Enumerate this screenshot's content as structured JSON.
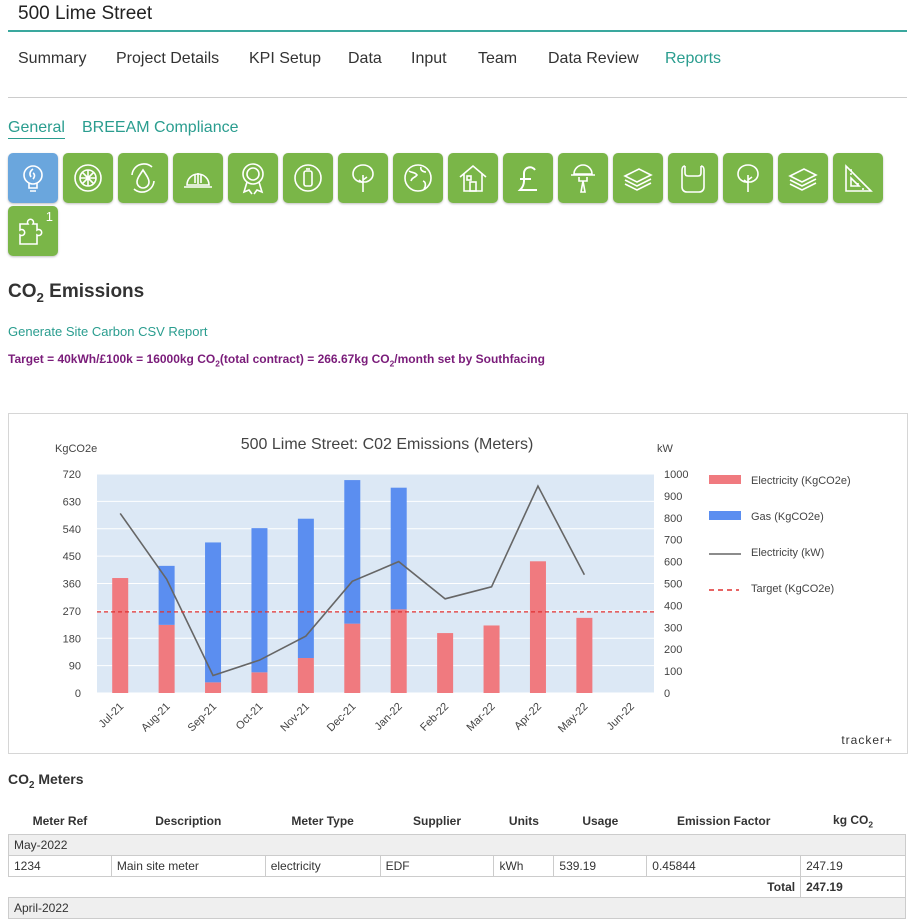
{
  "project": {
    "title": "500 Lime Street"
  },
  "nav": {
    "tabs": [
      "Summary",
      "Project Details",
      "KPI Setup",
      "Data",
      "Input",
      "Team",
      "Data Review",
      "Reports"
    ],
    "active": "Reports"
  },
  "subnav": {
    "tabs": [
      "General",
      "BREEAM Compliance"
    ],
    "active": "General"
  },
  "icon_buttons": [
    {
      "icon": "lightbulb-icon",
      "active": true
    },
    {
      "icon": "wheel-icon"
    },
    {
      "icon": "water-drop-icon"
    },
    {
      "icon": "hard-hat-icon"
    },
    {
      "icon": "award-icon"
    },
    {
      "icon": "recycle-icon"
    },
    {
      "icon": "tree-icon"
    },
    {
      "icon": "globe-icon"
    },
    {
      "icon": "house-icon"
    },
    {
      "icon": "pound-icon"
    },
    {
      "icon": "worker-icon"
    },
    {
      "icon": "paper-stack-icon"
    },
    {
      "icon": "bag-icon"
    },
    {
      "icon": "tree-icon"
    },
    {
      "icon": "paper-stack-icon"
    },
    {
      "icon": "set-square-icon"
    },
    {
      "icon": "puzzle-icon",
      "badge": "1"
    }
  ],
  "section": {
    "title_pre": "CO",
    "title_sub": "2",
    "title_post": " Emissions",
    "csv_link": "Generate Site Carbon CSV Report",
    "target_a": "Target = 40kWh/£100k = 16000kg CO",
    "target_b": "(total contract) = 266.67kg CO",
    "target_c": "/month set by Southfacing",
    "target_sub": "2"
  },
  "colors": {
    "accent": "#2a9d8f",
    "electricity": "#f07a7f",
    "gas": "#5b8ef0",
    "line": "#666666",
    "target": "#e03030",
    "plot_bg": "#dce8f5",
    "icon_green": "#7ab648",
    "icon_active": "#6aa6dd"
  },
  "chart_data": {
    "type": "bar",
    "title": "500 Lime Street: C02 Emissions (Meters)",
    "ylabel_left": "KgCO2e",
    "ylabel_right": "kW",
    "ylim_left": [
      0,
      720
    ],
    "ylim_right": [
      0,
      1000
    ],
    "yticks_left": [
      0,
      90,
      180,
      270,
      360,
      450,
      540,
      630,
      720
    ],
    "yticks_right": [
      0,
      100,
      200,
      300,
      400,
      500,
      600,
      700,
      800,
      900,
      1000
    ],
    "categories": [
      "Jul-21",
      "Aug-21",
      "Sep-21",
      "Oct-21",
      "Nov-21",
      "Dec-21",
      "Jan-22",
      "Feb-22",
      "Mar-22",
      "Apr-22",
      "May-22",
      "Jun-22"
    ],
    "stacked": true,
    "series": [
      {
        "name": "Electricity (KgCO2e)",
        "kind": "bar",
        "axis": "left",
        "values": [
          378,
          224,
          35,
          68,
          115,
          228,
          275,
          197,
          222,
          433,
          247,
          0
        ]
      },
      {
        "name": "Gas (KgCO2e)",
        "kind": "bar",
        "axis": "left",
        "values": [
          0,
          194,
          460,
          474,
          458,
          472,
          400,
          0,
          0,
          0,
          0,
          0
        ]
      },
      {
        "name": "Electricity (kW)",
        "kind": "line",
        "axis": "right",
        "values": [
          820,
          520,
          80,
          150,
          260,
          510,
          600,
          430,
          485,
          945,
          540,
          null
        ]
      },
      {
        "name": "Target (KgCO2e)",
        "kind": "dashed-line",
        "axis": "left",
        "value": 266.67
      }
    ],
    "legend_position": "right",
    "watermark": "tracker+"
  },
  "meters": {
    "title_pre": "CO",
    "title_sub": "2",
    "title_post": " Meters",
    "columns": [
      "Meter Ref",
      "Description",
      "Meter Type",
      "Supplier",
      "Units",
      "Usage",
      "Emission Factor",
      "kg CO"
    ],
    "col_sub": "2",
    "groups": [
      {
        "label": "May-2022",
        "rows": [
          [
            "1234",
            "Main site meter",
            "electricity",
            "EDF",
            "kWh",
            "539.19",
            "0.45844",
            "247.19"
          ]
        ],
        "total_label": "Total",
        "total": "247.19"
      },
      {
        "label": "April-2022"
      }
    ]
  }
}
